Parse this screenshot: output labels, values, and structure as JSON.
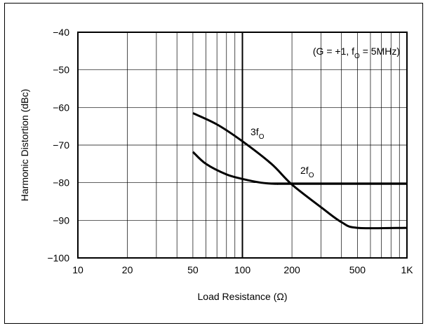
{
  "chart_data": {
    "type": "line",
    "xscale": "log",
    "xlim": [
      10,
      1000
    ],
    "ylim": [
      -100,
      -40
    ],
    "x_ticks": [
      {
        "value": 10,
        "label": "10"
      },
      {
        "value": 20,
        "label": "20"
      },
      {
        "value": 50,
        "label": "50"
      },
      {
        "value": 100,
        "label": "100"
      },
      {
        "value": 200,
        "label": "200"
      },
      {
        "value": 500,
        "label": "500"
      },
      {
        "value": 1000,
        "label": "1K"
      }
    ],
    "y_ticks": [
      {
        "value": -40,
        "label": "−40"
      },
      {
        "value": -50,
        "label": "−50"
      },
      {
        "value": -60,
        "label": "−60"
      },
      {
        "value": -70,
        "label": "−70"
      },
      {
        "value": -80,
        "label": "−80"
      },
      {
        "value": -90,
        "label": "−90"
      },
      {
        "value": -100,
        "label": "−100"
      }
    ],
    "xlabel": "Load Resistance (Ω)",
    "ylabel": "Harmonic Distortion (dBc)",
    "condition_text": {
      "prefix": "(G = +1, f",
      "sub": "O",
      "suffix": " = 5MHz)"
    },
    "grid": true,
    "series": [
      {
        "name": "3f",
        "name_sub": "O",
        "points": [
          [
            50,
            -61.5
          ],
          [
            70,
            -64.5
          ],
          [
            100,
            -69
          ],
          [
            150,
            -75
          ],
          [
            200,
            -80.5
          ],
          [
            300,
            -86.5
          ],
          [
            400,
            -90.5
          ],
          [
            500,
            -92
          ],
          [
            1000,
            -92
          ]
        ]
      },
      {
        "name": "2f",
        "name_sub": "O",
        "points": [
          [
            50,
            -71.8
          ],
          [
            60,
            -75
          ],
          [
            80,
            -77.8
          ],
          [
            100,
            -79
          ],
          [
            130,
            -80
          ],
          [
            160,
            -80.3
          ],
          [
            200,
            -80.3
          ],
          [
            1000,
            -80.3
          ]
        ]
      }
    ],
    "colors": {
      "line": "#000000",
      "grid": "#000000"
    }
  }
}
